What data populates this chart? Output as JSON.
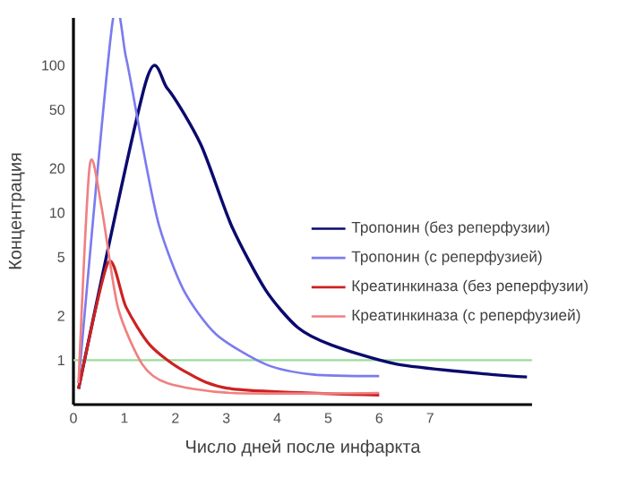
{
  "chart_data": {
    "type": "line",
    "xlabel": "Число дней после инфаркта",
    "ylabel": "Концентрация",
    "log": "y",
    "xlim": [
      0,
      9
    ],
    "ylim": [
      0.5,
      210
    ],
    "xticks": [
      0,
      1,
      2,
      3,
      4,
      5,
      6,
      7
    ],
    "yticks": [
      1,
      2,
      5,
      10,
      20,
      50,
      100
    ],
    "legend": "right",
    "grid": false,
    "marker": "none",
    "line_style": "solid",
    "ref_lines": [
      {
        "axis": "y",
        "value": 1,
        "color": "#99dd99"
      }
    ],
    "series": [
      {
        "name": "Тропонин (без реперфузии)",
        "color": "#0a0a6e",
        "x": [
          0.1,
          1.42,
          1.84,
          2.5,
          3.1,
          3.77,
          4.4,
          5.06,
          6.35,
          8.2,
          8.9
        ],
        "values": [
          0.64,
          77,
          70,
          29,
          8.2,
          3.0,
          1.67,
          1.27,
          0.94,
          0.8,
          0.77
        ]
      },
      {
        "name": "Тропонин (с реперфузией)",
        "color": "#7b7bef",
        "x": [
          0.1,
          0.77,
          1.03,
          1.35,
          1.68,
          2.16,
          2.8,
          3.77,
          4.7,
          6.0
        ],
        "values": [
          0.7,
          200,
          114,
          29,
          8.2,
          3.0,
          1.5,
          0.94,
          0.8,
          0.78
        ]
      },
      {
        "name": "Креатинкиназа (без реперфузии)",
        "color": "#cc2222",
        "x": [
          0.1,
          0.68,
          1.03,
          1.5,
          2.16,
          3.1,
          6.0
        ],
        "values": [
          0.64,
          4.6,
          2.3,
          1.27,
          0.85,
          0.64,
          0.58
        ]
      },
      {
        "name": "Креатинкиназа (с реперфузией)",
        "color": "#f08080",
        "x": [
          0.1,
          0.32,
          0.55,
          0.87,
          1.35,
          1.84,
          3.1,
          6.0
        ],
        "values": [
          0.7,
          21,
          11,
          2.3,
          0.94,
          0.7,
          0.6,
          0.6
        ]
      }
    ]
  }
}
